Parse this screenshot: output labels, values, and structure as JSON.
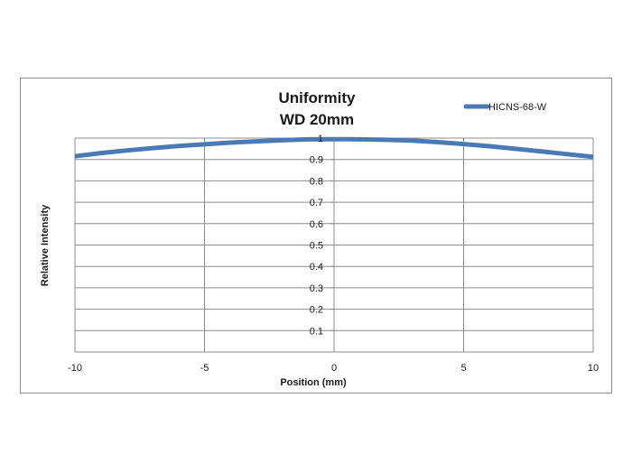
{
  "chart_data": {
    "type": "line",
    "title": "Uniformity",
    "subtitle": "WD 20mm",
    "xlabel": "Position (mm)",
    "ylabel": "Relative Intensity",
    "xlim": [
      -10,
      10
    ],
    "ylim": [
      0.1,
      1
    ],
    "xticks": [
      -10,
      -5,
      0,
      5,
      10
    ],
    "xtick_labels": [
      "-10",
      "-5",
      "0",
      "5",
      "10"
    ],
    "yticks": [
      0.1,
      0.2,
      0.3,
      0.4,
      0.5,
      0.6,
      0.7,
      0.8,
      0.9,
      1
    ],
    "ytick_labels": [
      "0.1",
      "0.2",
      "0.3",
      "0.4",
      "0.5",
      "0.6",
      "0.7",
      "0.8",
      "0.9",
      "1"
    ],
    "grid": true,
    "legend_position": "top-right",
    "series": [
      {
        "name": "HICNS-68-W",
        "color": "#4a7ab5",
        "x": [
          -10,
          -9,
          -8,
          -7,
          -6,
          -5,
          -4,
          -3,
          -2,
          -1,
          0,
          1,
          2,
          3,
          4,
          5,
          6,
          7,
          8,
          9,
          10
        ],
        "y": [
          0.915,
          0.93,
          0.942,
          0.953,
          0.963,
          0.971,
          0.979,
          0.985,
          0.99,
          0.994,
          0.995,
          0.994,
          0.992,
          0.988,
          0.981,
          0.972,
          0.962,
          0.95,
          0.938,
          0.925,
          0.912
        ]
      }
    ]
  }
}
